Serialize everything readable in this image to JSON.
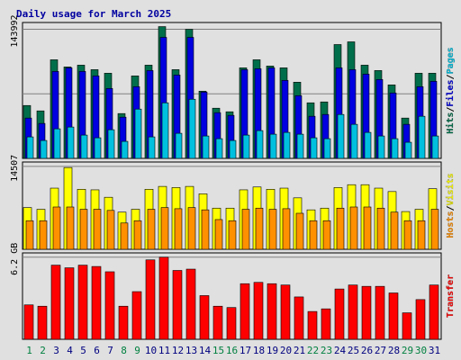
{
  "colors": {
    "background": "#e0e0e0",
    "hits": "#006e4a",
    "files": "#0000e0",
    "pages": "#00c0e0",
    "visits": "#ffff00",
    "hosts": "#ff9000",
    "transfer": "#ff0000",
    "title": "#0000a0",
    "weekday": "#000080",
    "weekend": "#008040"
  },
  "chart_data": [
    {
      "type": "bar",
      "title": "Daily usage for March 2025",
      "panel": "hits-files-pages",
      "side_label": {
        "parts": [
          "Hits",
          "Files",
          "Pages"
        ],
        "separator": "/"
      },
      "y_max_label": "143992",
      "ylim": [
        0,
        143992
      ],
      "x": [
        1,
        2,
        3,
        4,
        5,
        6,
        7,
        8,
        9,
        10,
        11,
        12,
        13,
        14,
        15,
        16,
        17,
        18,
        19,
        20,
        21,
        22,
        23,
        24,
        25,
        26,
        27,
        28,
        29,
        30,
        31
      ],
      "weekend_days": [
        1,
        2,
        8,
        9,
        15,
        16,
        22,
        23,
        29,
        30
      ],
      "series": [
        {
          "name": "Hits",
          "values": [
            59000,
            53000,
            110000,
            102000,
            104000,
            99000,
            95000,
            50000,
            92000,
            104000,
            147000,
            99000,
            144000,
            75000,
            56000,
            52000,
            101000,
            110000,
            103000,
            101000,
            85000,
            62000,
            63000,
            127000,
            130000,
            104000,
            98000,
            82000,
            45000,
            95000,
            95000
          ]
        },
        {
          "name": "Files",
          "values": [
            45000,
            39000,
            97000,
            101000,
            97000,
            92000,
            78000,
            46000,
            80000,
            98000,
            135000,
            93000,
            135000,
            74000,
            51000,
            48000,
            99000,
            100000,
            101000,
            87000,
            70000,
            47000,
            49000,
            101000,
            99000,
            94000,
            88000,
            73000,
            38000,
            80000,
            86000
          ]
        },
        {
          "name": "Pages",
          "values": [
            24000,
            20000,
            33000,
            35000,
            26000,
            23000,
            32000,
            19000,
            55000,
            24000,
            62000,
            28000,
            66000,
            25000,
            22000,
            20000,
            26000,
            31000,
            27000,
            29000,
            27000,
            23000,
            22000,
            49000,
            38000,
            29000,
            25000,
            22000,
            18000,
            47000,
            25000
          ]
        }
      ]
    },
    {
      "type": "bar",
      "panel": "visits-hosts",
      "side_label": {
        "parts": [
          "Hosts",
          "Visits"
        ],
        "separator": "/"
      },
      "y_max_label": "14507",
      "ylim": [
        0,
        14507
      ],
      "x": [
        1,
        2,
        3,
        4,
        5,
        6,
        7,
        8,
        9,
        10,
        11,
        12,
        13,
        14,
        15,
        16,
        17,
        18,
        19,
        20,
        21,
        22,
        23,
        24,
        25,
        26,
        27,
        28,
        29,
        30,
        31
      ],
      "series": [
        {
          "name": "Visits",
          "values": [
            7300,
            7000,
            10700,
            14300,
            10500,
            10400,
            9100,
            6500,
            7000,
            10500,
            11000,
            10800,
            11000,
            9700,
            7200,
            7200,
            10400,
            10900,
            10500,
            10700,
            9000,
            6900,
            7200,
            10800,
            11300,
            11300,
            10700,
            10100,
            6600,
            7000,
            10600
          ]
        },
        {
          "name": "Hosts",
          "values": [
            5000,
            5000,
            7400,
            7400,
            7000,
            7000,
            6800,
            4600,
            5000,
            7000,
            7300,
            7100,
            7300,
            6900,
            5200,
            5000,
            7000,
            7200,
            7000,
            7100,
            6300,
            5000,
            5000,
            7200,
            7400,
            7400,
            7200,
            6500,
            5000,
            5000,
            7000
          ]
        }
      ]
    },
    {
      "type": "bar",
      "panel": "transfer",
      "side_label": {
        "parts": [
          "Transfer"
        ],
        "separator": ""
      },
      "y_max_label": "6.2 GB",
      "y_max_value": 6.2,
      "y_unit": "GB",
      "ylim": [
        0,
        6.2
      ],
      "x_labels": [
        "1",
        "2",
        "3",
        "4",
        "5",
        "6",
        "7",
        "8",
        "9",
        "10",
        "11",
        "12",
        "13",
        "14",
        "15",
        "16",
        "17",
        "18",
        "19",
        "20",
        "21",
        "22",
        "23",
        "24",
        "25",
        "26",
        "27",
        "28",
        "29",
        "30",
        "31"
      ],
      "series": [
        {
          "name": "Transfer",
          "values": [
            2.6,
            2.5,
            5.6,
            5.4,
            5.6,
            5.5,
            5.1,
            2.5,
            3.6,
            6.0,
            6.2,
            5.2,
            5.3,
            3.3,
            2.5,
            2.4,
            4.2,
            4.3,
            4.2,
            4.1,
            3.2,
            2.1,
            2.3,
            3.8,
            4.1,
            4.0,
            4.0,
            3.5,
            2.0,
            3.0,
            4.1
          ]
        }
      ]
    }
  ]
}
